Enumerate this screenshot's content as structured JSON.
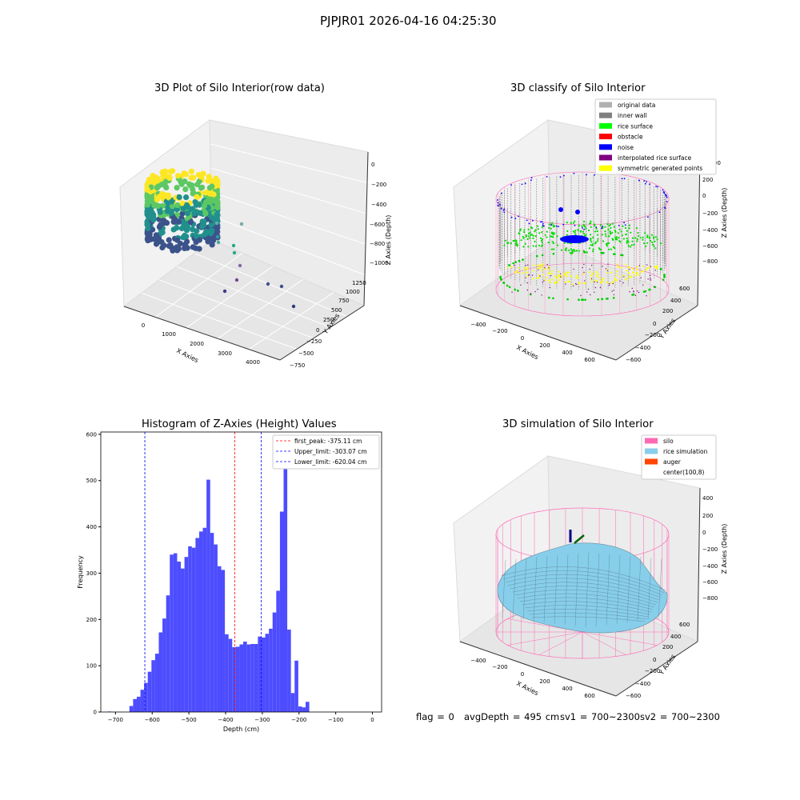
{
  "suptitle": "PJPJR01 2026-04-16 04:25:30",
  "footer": {
    "flag": "flag = 0",
    "avg_depth": "avgDepth = 495 cm",
    "sv1": "sv1 = 700~2300",
    "sv2": "sv2 = 700~2300"
  },
  "colors": {
    "histogram_bars": "#4d4dff",
    "peak_line": "#ff0000",
    "limit_line": "#0000ff",
    "silo_wire": "#ff69b4",
    "rice_surface": "#87ceeb",
    "inner_wall": "#808080",
    "rice_points": "#00ff00",
    "noise": "#0000ff",
    "symmetric": "#ffff00"
  },
  "chart_data": [
    {
      "type": "scatter3d",
      "title": "3D Plot of Silo Interior(row data)",
      "xlabel": "X Axies",
      "ylabel": "Y Axies",
      "zlabel": "Z Axies (Depth)",
      "x_ticks": [
        "0",
        "1000",
        "2000",
        "3000",
        "4000"
      ],
      "y_ticks": [
        "−750",
        "−500",
        "−250",
        "0",
        "250",
        "500",
        "750",
        "1000",
        "1250"
      ],
      "z_ticks": [
        "0",
        "−200",
        "−400",
        "−600",
        "−800",
        "−1000"
      ],
      "colormap": "viridis"
    },
    {
      "type": "scatter3d",
      "title": "3D classify of Silo Interior",
      "xlabel": "X Axies",
      "ylabel": "Y Axies",
      "zlabel": "Z Axies (Depth)",
      "x_ticks": [
        "−400",
        "−200",
        "0",
        "200",
        "400",
        "600"
      ],
      "y_ticks": [
        "−600",
        "−400",
        "−200",
        "0",
        "200",
        "400",
        "600"
      ],
      "z_ticks": [
        "200",
        "0",
        "−200",
        "−400",
        "−600",
        "−800"
      ],
      "z_top_partial": "00",
      "legend": [
        {
          "label": "original data",
          "color": "#b0b0b0"
        },
        {
          "label": "inner wall",
          "color": "#808080"
        },
        {
          "label": "rice surface",
          "color": "#00ff00"
        },
        {
          "label": "obstacle",
          "color": "#ff0000"
        },
        {
          "label": "noise",
          "color": "#0000ff"
        },
        {
          "label": "interpolated rice surface",
          "color": "#800080"
        },
        {
          "label": "symmetric generated points",
          "color": "#ffff00"
        }
      ]
    },
    {
      "type": "bar",
      "title": "Histogram of Z-Axies (Height) Values",
      "xlabel": "Depth (cm)",
      "ylabel": "Frequency",
      "xlim": [
        -740,
        25
      ],
      "ylim": [
        0,
        605
      ],
      "x_ticks": [
        -700,
        -600,
        -500,
        -400,
        -300,
        -200,
        -100,
        0
      ],
      "x_tick_labels": [
        "−700",
        "−600",
        "−500",
        "−400",
        "−300",
        "−200",
        "−100",
        "0"
      ],
      "y_ticks": [
        0,
        100,
        200,
        300,
        400,
        500,
        600
      ],
      "bin_width": 10,
      "bin_starts": [
        -722,
        -712,
        -702,
        -692,
        -682,
        -672,
        -662,
        -652,
        -642,
        -632,
        -622,
        -612,
        -602,
        -592,
        -582,
        -572,
        -562,
        -552,
        -542,
        -532,
        -522,
        -512,
        -502,
        -492,
        -482,
        -472,
        -462,
        -452,
        -442,
        -432,
        -422,
        -412,
        -402,
        -392,
        -382,
        -372,
        -362,
        -352,
        -342,
        -332,
        -322,
        -312,
        -302,
        -292,
        -282,
        -272,
        -262,
        -252,
        -242,
        -232,
        -222,
        -212,
        -202,
        -192,
        -182,
        -172,
        -162,
        -152,
        -142,
        -132,
        -122,
        -112,
        -102,
        -92,
        -82,
        -72,
        -62,
        -52,
        -42,
        -32,
        -22,
        -12,
        -2
      ],
      "values": [
        1,
        0,
        0,
        0,
        0,
        0,
        13,
        28,
        33,
        48,
        63,
        87,
        112,
        126,
        172,
        202,
        252,
        340,
        343,
        325,
        310,
        335,
        358,
        355,
        376,
        390,
        398,
        502,
        387,
        362,
        315,
        307,
        168,
        158,
        140,
        141,
        146,
        152,
        146,
        147,
        147,
        163,
        161,
        169,
        180,
        215,
        262,
        433,
        578,
        178,
        41,
        111,
        12,
        10,
        22,
        0,
        0,
        0,
        0,
        0,
        0,
        0,
        0,
        0,
        0,
        0,
        0,
        0,
        0,
        0,
        0,
        0,
        0
      ],
      "vlines": [
        {
          "x": -375.11,
          "label": "first_peak: -375.11 cm",
          "color": "#ff0000"
        },
        {
          "x": -303.07,
          "label": "Upper_limit: -303.07 cm",
          "color": "#0000ff"
        },
        {
          "x": -620.04,
          "label": "Lower_limit: -620.04 cm",
          "color": "#0000ff"
        }
      ],
      "legend_position": "top-right"
    },
    {
      "type": "surface3d",
      "title": "3D simulation of Silo Interior",
      "xlabel": "X Axies",
      "ylabel": "Y Axies",
      "zlabel": "Z Axies (Depth)",
      "x_ticks": [
        "−400",
        "−200",
        "0",
        "200",
        "400",
        "600"
      ],
      "y_ticks": [
        "−600",
        "−400",
        "−200",
        "0",
        "200",
        "400",
        "600"
      ],
      "z_ticks": [
        "400",
        "200",
        "0",
        "−200",
        "−400",
        "−600",
        "−800"
      ],
      "legend": [
        {
          "label": "silo",
          "color": "#ff69b4"
        },
        {
          "label": "rice simulation",
          "color": "#87ceeb"
        },
        {
          "label": "auger",
          "color": "#ff4500"
        },
        {
          "label": "center(100,8)",
          "color": "none"
        }
      ]
    }
  ]
}
